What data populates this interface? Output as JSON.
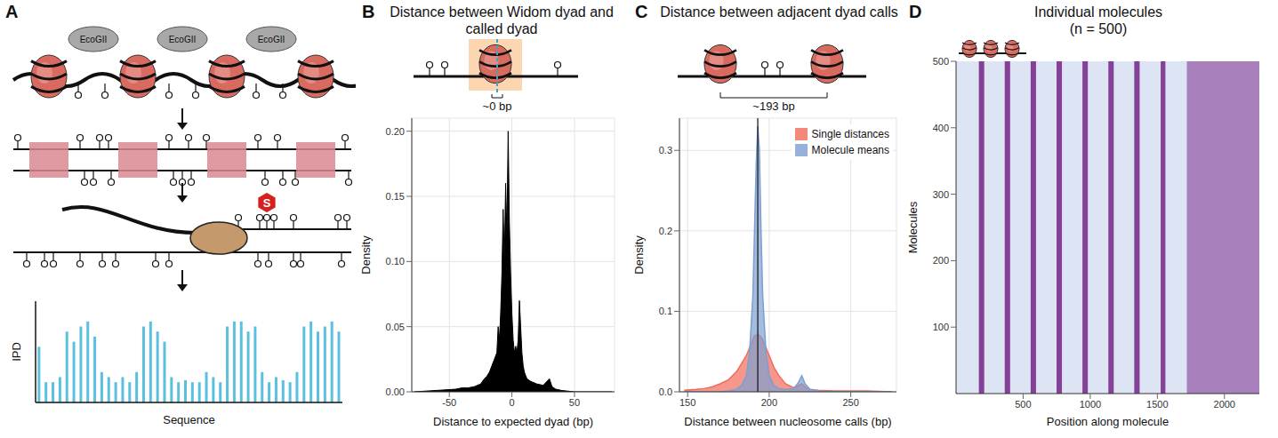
{
  "diagram": {
    "enzyme_labels": [
      "EcoGII",
      "EcoGII",
      "EcoGII"
    ],
    "polymerase_label": "S"
  },
  "chart_data": [
    {
      "panel_label": "A",
      "type": "bar",
      "xlabel": "Sequence",
      "ylabel": "IPD",
      "values": [
        0.55,
        0.2,
        0.2,
        0.25,
        0.7,
        0.6,
        0.75,
        0.8,
        0.65,
        0.3,
        0.25,
        0.2,
        0.25,
        0.2,
        0.3,
        0.75,
        0.8,
        0.7,
        0.6,
        0.25,
        0.2,
        0.22,
        0.2,
        0.2,
        0.3,
        0.25,
        0.2,
        0.75,
        0.8,
        0.8,
        0.7,
        0.75,
        0.3,
        0.2,
        0.25,
        0.22,
        0.2,
        0.3,
        0.75,
        0.8,
        0.7,
        0.75,
        0.8,
        0.7
      ],
      "ylim": [
        0,
        1
      ],
      "tick_labels": false,
      "color": "#5bc0de"
    },
    {
      "panel_label": "B",
      "type": "area",
      "title": "Distance between Widom dyad and called dyad",
      "annotation": "~0 bp",
      "xlabel": "Distance to expected dyad (bp)",
      "ylabel": "Density",
      "x": [
        -78,
        -45,
        -40,
        -35,
        -30,
        -25,
        -22,
        -20,
        -18,
        -16,
        -14,
        -12,
        -11,
        -10,
        -9,
        -8,
        -7,
        -6,
        -5,
        -4,
        -3,
        -2,
        -1,
        0,
        1,
        2,
        3,
        4,
        5,
        6,
        7,
        8,
        9,
        10,
        12,
        15,
        20,
        25,
        30,
        32,
        35,
        40,
        50,
        80
      ],
      "values": [
        0,
        0.002,
        0.003,
        0.003,
        0.004,
        0.006,
        0.01,
        0.012,
        0.015,
        0.02,
        0.025,
        0.03,
        0.05,
        0.04,
        0.06,
        0.09,
        0.14,
        0.1,
        0.16,
        0.12,
        0.2,
        0.13,
        0.09,
        0.06,
        0.04,
        0.03,
        0.035,
        0.03,
        0.04,
        0.07,
        0.05,
        0.03,
        0.02,
        0.015,
        0.01,
        0.008,
        0.006,
        0.005,
        0.01,
        0.004,
        0.002,
        0.001,
        0,
        0
      ],
      "color": "#000000",
      "xlim": [
        -80,
        82
      ],
      "xticks": [
        -50,
        0,
        50
      ],
      "ylim": [
        0,
        0.21
      ],
      "yticks": [
        {
          "value": 0,
          "label": "0.00"
        },
        {
          "value": 0.05,
          "label": "0.05"
        },
        {
          "value": 0.1,
          "label": "0.10"
        },
        {
          "value": 0.15,
          "label": "0.15"
        },
        {
          "value": 0.2,
          "label": "0.20"
        }
      ],
      "grid": true
    },
    {
      "panel_label": "C",
      "type": "area",
      "title": "Distance between adjacent dyad calls",
      "annotation": "~193 bp",
      "reference_x": 193,
      "xlabel": "Distance between nucleosome calls (bp)",
      "ylabel": "Density",
      "x": [
        148,
        155,
        160,
        165,
        170,
        175,
        180,
        183,
        186,
        188,
        190,
        191,
        192,
        193,
        194,
        195,
        196,
        198,
        200,
        203,
        206,
        210,
        215,
        218,
        220,
        222,
        225,
        230,
        240,
        260,
        275
      ],
      "series": [
        {
          "name": "Single distances",
          "color": "#f26b5b",
          "values": [
            0.002,
            0.003,
            0.004,
            0.006,
            0.01,
            0.015,
            0.025,
            0.035,
            0.045,
            0.055,
            0.065,
            0.07,
            0.07,
            0.072,
            0.07,
            0.068,
            0.065,
            0.055,
            0.045,
            0.03,
            0.02,
            0.01,
            0.005,
            0.008,
            0.01,
            0.006,
            0.003,
            0.002,
            0.001,
            0.001,
            0
          ]
        },
        {
          "name": "Molecule means",
          "color": "#7d9fd1",
          "values": [
            0,
            0,
            0,
            0,
            0,
            0.001,
            0.003,
            0.008,
            0.02,
            0.05,
            0.12,
            0.2,
            0.28,
            0.33,
            0.3,
            0.2,
            0.12,
            0.05,
            0.02,
            0.008,
            0.004,
            0.003,
            0.004,
            0.012,
            0.02,
            0.01,
            0.003,
            0.001,
            0,
            0,
            0
          ]
        }
      ],
      "xlim": [
        145,
        278
      ],
      "xticks": [
        150,
        200,
        250
      ],
      "ylim": [
        0,
        0.34
      ],
      "yticks": [
        {
          "value": 0,
          "label": "0.0"
        },
        {
          "value": 0.1,
          "label": "0.1"
        },
        {
          "value": 0.2,
          "label": "0.2"
        },
        {
          "value": 0.3,
          "label": "0.3"
        }
      ],
      "grid": true,
      "legend": "top-right"
    },
    {
      "panel_label": "D",
      "type": "heatmap",
      "title": "Individual molecules",
      "subtitle": "(n = 500)",
      "xlabel": "Position along molecule",
      "ylabel": "Molecules",
      "linker_bands": [
        [
          170,
          210
        ],
        [
          363,
          403
        ],
        [
          556,
          596
        ],
        [
          749,
          789
        ],
        [
          942,
          982
        ],
        [
          1135,
          1175
        ],
        [
          1328,
          1368
        ],
        [
          1525,
          1560
        ]
      ],
      "heterogeneous_region": [
        1720,
        2260
      ],
      "color": "#7b2d8e",
      "xlim": [
        0,
        2260
      ],
      "xticks": [
        500,
        1000,
        1500,
        2000
      ],
      "ylim": [
        0,
        500
      ],
      "yticks": [
        100,
        200,
        300,
        400,
        500
      ]
    }
  ]
}
